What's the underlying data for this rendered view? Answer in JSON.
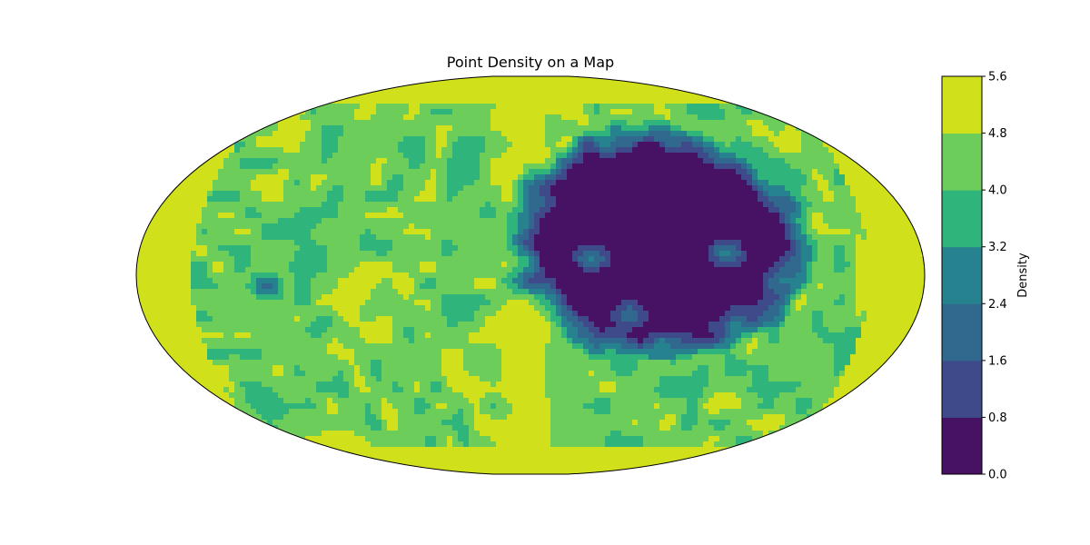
{
  "chart_data": {
    "type": "heatmap",
    "title": "Point Density on a Map",
    "projection": "elliptical world map (Robinson-like)",
    "colorbar": {
      "label": "Density",
      "range": [
        0.0,
        5.6
      ],
      "levels": [
        0.0,
        0.8,
        1.6,
        2.4,
        3.2,
        4.0,
        4.8,
        5.6
      ],
      "tick_labels": [
        "0.0",
        "0.8",
        "1.6",
        "2.4",
        "3.2",
        "4.0",
        "4.8",
        "5.6"
      ],
      "colors": [
        "#471164",
        "#3e4a89",
        "#31688e",
        "#26828e",
        "#2fb47c",
        "#6ccd5a",
        "#d0e11c"
      ]
    },
    "field": {
      "background_level": 4.4,
      "background_level_secondary": 5.1,
      "high_band_longitude_deg": 0,
      "low_region": {
        "value": 0.2,
        "center_lon_deg": 60,
        "center_lat_deg": 15,
        "extent_lon_deg": 60,
        "extent_lat_deg": 45
      },
      "small_low_spots": [
        {
          "lon_deg": 28,
          "lat_deg": 8,
          "value": 3.0
        },
        {
          "lon_deg": 46,
          "lat_deg": -18,
          "value": 2.6
        },
        {
          "lon_deg": 90,
          "lat_deg": 10,
          "value": 3.0
        },
        {
          "lon_deg": 115,
          "lat_deg": -2,
          "value": 2.8
        },
        {
          "lon_deg": 45,
          "lat_deg": -40,
          "value": 3.2
        },
        {
          "lon_deg": 70,
          "lat_deg": -50,
          "value": 3.0
        },
        {
          "lon_deg": 100,
          "lat_deg": -42,
          "value": 3.2
        },
        {
          "lon_deg": 112,
          "lat_deg": 55,
          "value": 3.2
        },
        {
          "lon_deg": -120,
          "lat_deg": -5,
          "value": 2.0
        },
        {
          "lon_deg": -100,
          "lat_deg": -25,
          "value": 3.4
        }
      ]
    }
  }
}
